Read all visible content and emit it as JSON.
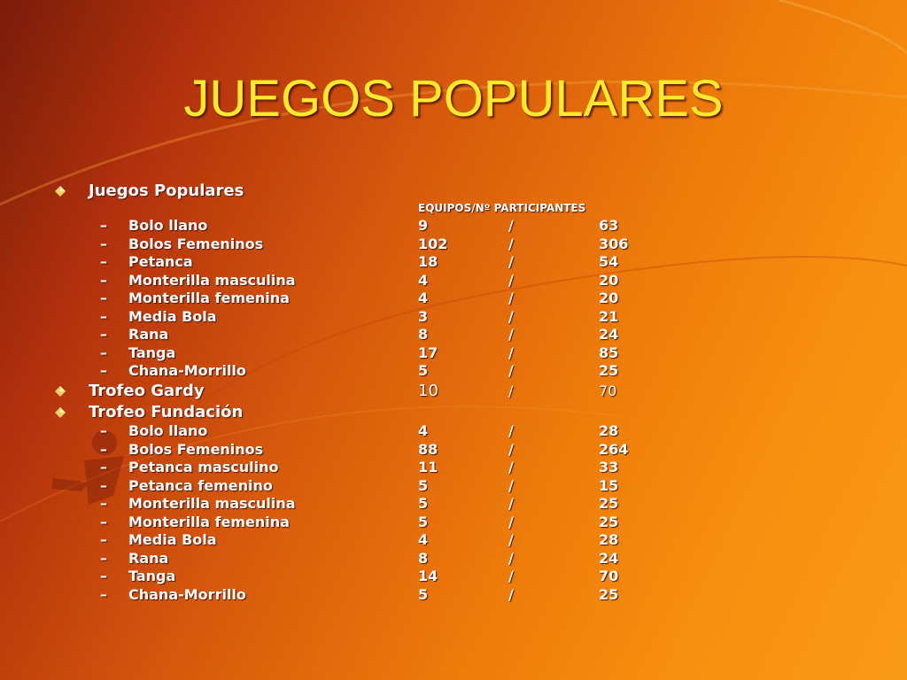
{
  "title": "JUEGOS POPULARES",
  "section1": {
    "label": "Juegos Populares",
    "column_header": "EQUIPOS/Nº PARTICIPANTES",
    "rows": [
      {
        "name": "Bolo llano",
        "equipos": "9",
        "sep": "/",
        "participantes": "63"
      },
      {
        "name": "Bolos Femeninos",
        "equipos": "102",
        "sep": "/",
        "participantes": "306"
      },
      {
        "name": "Petanca",
        "equipos": "18",
        "sep": "/",
        "participantes": "54"
      },
      {
        "name": "Monterilla masculina",
        "equipos": "4",
        "sep": "/",
        "participantes": "20"
      },
      {
        "name": "Monterilla femenina",
        "equipos": "4",
        "sep": "/",
        "participantes": "20"
      },
      {
        "name": "Media Bola",
        "equipos": "3",
        "sep": "/",
        "participantes": "21"
      },
      {
        "name": "Rana",
        "equipos": "8",
        "sep": "/",
        "participantes": "24"
      },
      {
        "name": "Tanga",
        "equipos": "17",
        "sep": "/",
        "participantes": "85"
      },
      {
        "name": "Chana-Morrillo",
        "equipos": "5",
        "sep": "/",
        "participantes": "25"
      }
    ]
  },
  "section2": {
    "label": "Trofeo Gardy",
    "equipos": "10",
    "sep": "/",
    "participantes": "70"
  },
  "section3": {
    "label": "Trofeo Fundación",
    "rows": [
      {
        "name": "Bolo llano",
        "equipos": "4",
        "sep": "/",
        "participantes": "28"
      },
      {
        "name": "Bolos Femeninos",
        "equipos": "88",
        "sep": "/",
        "participantes": "264"
      },
      {
        "name": "Petanca masculino",
        "equipos": "11",
        "sep": "/",
        "participantes": "33"
      },
      {
        "name": "Petanca femenino",
        "equipos": "5",
        "sep": "/",
        "participantes": "15"
      },
      {
        "name": "Monterilla masculina",
        "equipos": "5",
        "sep": "/",
        "participantes": "25"
      },
      {
        "name": "Monterilla femenina",
        "equipos": "5",
        "sep": "/",
        "participantes": "25"
      },
      {
        "name": "Media Bola",
        "equipos": "4",
        "sep": "/",
        "participantes": "28"
      },
      {
        "name": "Rana",
        "equipos": "8",
        "sep": "/",
        "participantes": "24"
      },
      {
        "name": "Tanga",
        "equipos": "14",
        "sep": "/",
        "participantes": "70"
      },
      {
        "name": "Chana-Morrillo",
        "equipos": "5",
        "sep": "/",
        "participantes": "25"
      }
    ]
  },
  "dash_glyph": "–",
  "colors": {
    "title": "#ffe82e",
    "text": "#ffffff",
    "bullet": "#f0d060"
  }
}
